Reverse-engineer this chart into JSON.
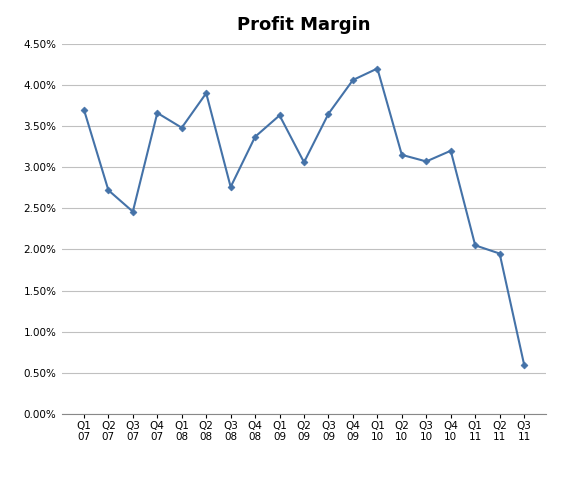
{
  "title": "Profit Margin",
  "values": [
    0.037,
    0.0272,
    0.0246,
    0.0366,
    0.0348,
    0.039,
    0.0276,
    0.0337,
    0.0363,
    0.0306,
    0.0365,
    0.0406,
    0.042,
    0.0315,
    0.0307,
    0.032,
    0.0205,
    0.0195,
    0.006
  ],
  "labels": [
    [
      "Q1",
      "07"
    ],
    [
      "Q2",
      "07"
    ],
    [
      "Q3",
      "07"
    ],
    [
      "Q4",
      "07"
    ],
    [
      "Q1",
      "08"
    ],
    [
      "Q2",
      "08"
    ],
    [
      "Q3",
      "08"
    ],
    [
      "Q4",
      "08"
    ],
    [
      "Q1",
      "09"
    ],
    [
      "Q2",
      "09"
    ],
    [
      "Q3",
      "09"
    ],
    [
      "Q4",
      "09"
    ],
    [
      "Q1",
      "10"
    ],
    [
      "Q2",
      "10"
    ],
    [
      "Q3",
      "10"
    ],
    [
      "Q4",
      "10"
    ],
    [
      "Q1",
      "11"
    ],
    [
      "Q2",
      "11"
    ],
    [
      "Q3",
      "11"
    ]
  ],
  "line_color": "#4472A8",
  "marker": "D",
  "marker_size": 3.5,
  "ylim": [
    0.0,
    0.045
  ],
  "yticks": [
    0.0,
    0.005,
    0.01,
    0.015,
    0.02,
    0.025,
    0.03,
    0.035,
    0.04,
    0.045
  ],
  "background_color": "#ffffff",
  "grid_color": "#c0c0c0",
  "title_fontsize": 13,
  "tick_fontsize": 7.5,
  "line_width": 1.5
}
